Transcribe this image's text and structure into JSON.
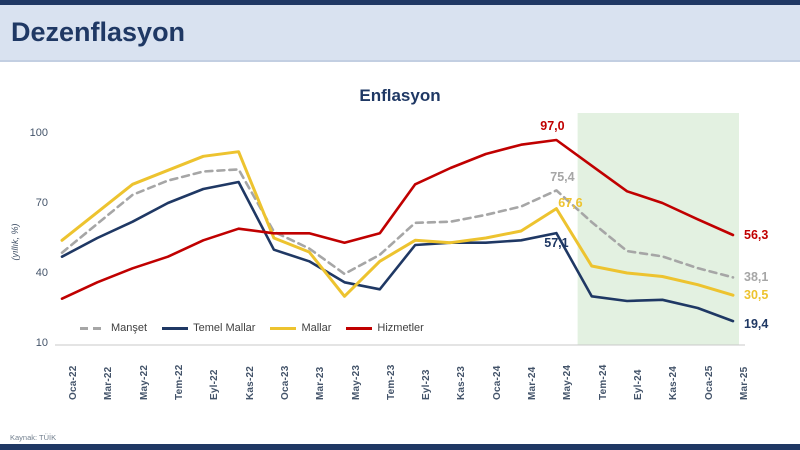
{
  "page": {
    "title": "Dezenflasyon",
    "source": "Kaynak: TÜİK"
  },
  "theme": {
    "top_bar_color": "#1f3864",
    "header_bg": "#d9e2f0",
    "title_color": "#1f3864",
    "axis_text_color": "#44546a",
    "highlight_green": "#e3f1e1",
    "axis_line_color": "#c9c9c9"
  },
  "chart_data": {
    "type": "line",
    "title": "Enflasyon",
    "ylabel": "(yıllık, %)",
    "ylim": [
      10,
      100
    ],
    "yticks": [
      10,
      40,
      70,
      100
    ],
    "grid": false,
    "legend_position": "bottom-left-inside",
    "categories": [
      "Oca-22",
      "Mar-22",
      "May-22",
      "Tem-22",
      "Eyl-22",
      "Kas-22",
      "Oca-23",
      "Mar-23",
      "May-23",
      "Tem-23",
      "Eyl-23",
      "Kas-23",
      "Oca-24",
      "Mar-24",
      "May-24",
      "Tem-24",
      "Eyl-24",
      "Kas-24",
      "Oca-25",
      "Mar-25"
    ],
    "highlight_region": {
      "start_index": 14.6,
      "end_index": 19.17,
      "color": "#e3f1e1"
    },
    "series": [
      {
        "name": "Manşet",
        "color": "#a6a6a6",
        "style": "dashed",
        "values": [
          48.7,
          61.1,
          73.5,
          79.6,
          83.5,
          84.4,
          57.7,
          50.5,
          39.6,
          47.8,
          61.5,
          62.0,
          64.9,
          68.5,
          75.4,
          61.8,
          49.4,
          47.1,
          42.1,
          38.1
        ],
        "peak_label": "75,4",
        "peak_index": 14,
        "end_label": "38,1"
      },
      {
        "name": "Temel Mallar",
        "color": "#1f3864",
        "style": "solid",
        "values": [
          47,
          55,
          62,
          70,
          76,
          79,
          50,
          45,
          36,
          33,
          52,
          53,
          53,
          54,
          57.1,
          30,
          28,
          28.5,
          25,
          19.4
        ],
        "peak_label": "57,1",
        "peak_index": 14,
        "end_label": "19,4"
      },
      {
        "name": "Mallar",
        "color": "#edc32f",
        "style": "solid",
        "values": [
          54,
          66,
          78,
          84,
          90,
          92,
          55,
          49,
          30,
          45,
          54,
          53,
          55,
          58,
          67.6,
          43,
          40,
          38.5,
          35,
          30.5
        ],
        "peak_label": "67,6",
        "peak_index": 14,
        "end_label": "30,5"
      },
      {
        "name": "Hizmetler",
        "color": "#c00000",
        "style": "solid",
        "values": [
          29,
          36,
          42,
          47,
          54,
          59,
          57,
          57,
          53,
          57,
          78,
          85,
          91,
          95,
          97.0,
          86,
          75,
          70,
          63,
          56.3
        ],
        "peak_label": "97,0",
        "peak_index": 14,
        "end_label": "56,3"
      }
    ]
  }
}
